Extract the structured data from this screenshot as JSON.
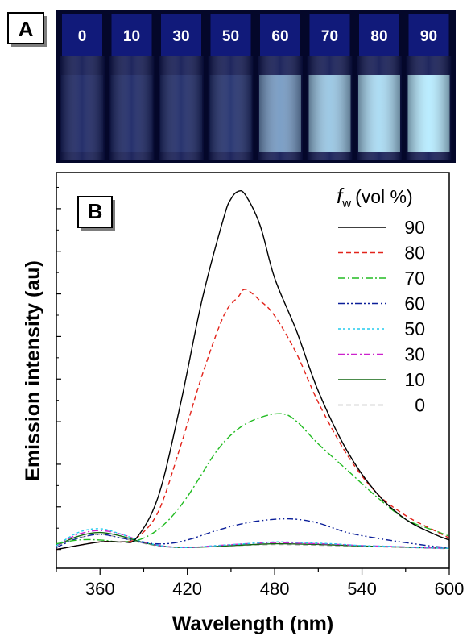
{
  "panel_a": {
    "label": "A",
    "vials": [
      {
        "fw": "0",
        "glow": 0.0
      },
      {
        "fw": "10",
        "glow": 0.03
      },
      {
        "fw": "30",
        "glow": 0.06
      },
      {
        "fw": "50",
        "glow": 0.12
      },
      {
        "fw": "60",
        "glow": 0.72
      },
      {
        "fw": "70",
        "glow": 0.88
      },
      {
        "fw": "80",
        "glow": 0.95
      },
      {
        "fw": "90",
        "glow": 1.0
      }
    ]
  },
  "panel_b": {
    "label": "B"
  },
  "chart_data": {
    "type": "line",
    "title": "",
    "xlabel": "Wavelength (nm)",
    "ylabel": "Emission intensity (au)",
    "xlim": [
      330,
      600
    ],
    "ylim": [
      -5,
      100
    ],
    "x_ticks": [
      360,
      420,
      480,
      540,
      600
    ],
    "legend_title_italic": "f",
    "legend_title_sub": "w",
    "legend_title_rest": "(vol %)",
    "legend_position": "top-right",
    "series": [
      {
        "name": "90",
        "color": "#000000",
        "dash": "",
        "points": [
          [
            330,
            0
          ],
          [
            360,
            2
          ],
          [
            375,
            2
          ],
          [
            385,
            3
          ],
          [
            400,
            14
          ],
          [
            415,
            38
          ],
          [
            430,
            66
          ],
          [
            445,
            88
          ],
          [
            450,
            93
          ],
          [
            455,
            95
          ],
          [
            460,
            94
          ],
          [
            470,
            86
          ],
          [
            480,
            72
          ],
          [
            495,
            58
          ],
          [
            510,
            42
          ],
          [
            530,
            26
          ],
          [
            550,
            15
          ],
          [
            570,
            8
          ],
          [
            590,
            4
          ],
          [
            600,
            2.5
          ]
        ]
      },
      {
        "name": "80",
        "color": "#e2231a",
        "dash": "6,4",
        "points": [
          [
            330,
            0
          ],
          [
            360,
            2
          ],
          [
            375,
            2
          ],
          [
            385,
            3
          ],
          [
            400,
            10
          ],
          [
            415,
            27
          ],
          [
            430,
            46
          ],
          [
            445,
            62
          ],
          [
            455,
            67
          ],
          [
            460,
            69
          ],
          [
            470,
            66
          ],
          [
            480,
            62
          ],
          [
            495,
            52
          ],
          [
            510,
            39
          ],
          [
            530,
            25
          ],
          [
            550,
            15
          ],
          [
            570,
            9
          ],
          [
            590,
            5
          ],
          [
            600,
            3
          ]
        ]
      },
      {
        "name": "70",
        "color": "#22bb22",
        "dash": "9,3,2,3",
        "points": [
          [
            330,
            1.5
          ],
          [
            345,
            2.5
          ],
          [
            360,
            2.5
          ],
          [
            375,
            2
          ],
          [
            390,
            3
          ],
          [
            405,
            7
          ],
          [
            420,
            14
          ],
          [
            440,
            26
          ],
          [
            455,
            32
          ],
          [
            470,
            35
          ],
          [
            485,
            36
          ],
          [
            495,
            34
          ],
          [
            510,
            28
          ],
          [
            530,
            21
          ],
          [
            550,
            14
          ],
          [
            570,
            8
          ],
          [
            590,
            5
          ],
          [
            600,
            3.5
          ]
        ]
      },
      {
        "name": "60",
        "color": "#0b1f99",
        "dash": "8,3,2,3,2,3",
        "points": [
          [
            330,
            0.5
          ],
          [
            345,
            3
          ],
          [
            360,
            4
          ],
          [
            375,
            3
          ],
          [
            390,
            1.8
          ],
          [
            405,
            1.5
          ],
          [
            420,
            2.5
          ],
          [
            440,
            5
          ],
          [
            460,
            7
          ],
          [
            480,
            8
          ],
          [
            495,
            8
          ],
          [
            510,
            7
          ],
          [
            530,
            4.5
          ],
          [
            550,
            3
          ],
          [
            570,
            1.8
          ],
          [
            590,
            0.8
          ],
          [
            600,
            0.5
          ]
        ]
      },
      {
        "name": "50",
        "color": "#22ccee",
        "dash": "3,3",
        "points": [
          [
            330,
            1
          ],
          [
            345,
            4.5
          ],
          [
            360,
            5.5
          ],
          [
            375,
            4
          ],
          [
            390,
            2
          ],
          [
            405,
            0.8
          ],
          [
            420,
            0.5
          ],
          [
            440,
            1
          ],
          [
            460,
            1.5
          ],
          [
            480,
            2
          ],
          [
            500,
            1.8
          ],
          [
            520,
            1.5
          ],
          [
            540,
            1
          ],
          [
            560,
            0.8
          ],
          [
            580,
            0.5
          ],
          [
            600,
            0.3
          ]
        ]
      },
      {
        "name": "30",
        "color": "#cc22cc",
        "dash": "8,3,2,3",
        "points": [
          [
            330,
            1
          ],
          [
            345,
            4
          ],
          [
            360,
            5
          ],
          [
            375,
            4
          ],
          [
            390,
            2
          ],
          [
            405,
            0.8
          ],
          [
            420,
            0.5
          ],
          [
            440,
            1
          ],
          [
            460,
            1.5
          ],
          [
            480,
            1.8
          ],
          [
            500,
            1.6
          ],
          [
            520,
            1.4
          ],
          [
            540,
            1
          ],
          [
            560,
            0.8
          ],
          [
            580,
            0.5
          ],
          [
            600,
            0.3
          ]
        ]
      },
      {
        "name": "10",
        "color": "#116611",
        "dash": "",
        "points": [
          [
            330,
            1
          ],
          [
            345,
            3.5
          ],
          [
            360,
            4.5
          ],
          [
            375,
            3.5
          ],
          [
            390,
            1.8
          ],
          [
            405,
            0.8
          ],
          [
            420,
            0.5
          ],
          [
            440,
            0.8
          ],
          [
            460,
            1.2
          ],
          [
            480,
            1.5
          ],
          [
            500,
            1.4
          ],
          [
            520,
            1.2
          ],
          [
            540,
            0.9
          ],
          [
            560,
            0.7
          ],
          [
            580,
            0.5
          ],
          [
            600,
            0.3
          ]
        ]
      },
      {
        "name": "0",
        "color": "#a9a9a9",
        "dash": "6,4",
        "points": [
          [
            330,
            1
          ],
          [
            345,
            3
          ],
          [
            360,
            4
          ],
          [
            375,
            3
          ],
          [
            390,
            1.6
          ],
          [
            405,
            0.7
          ],
          [
            420,
            0.5
          ],
          [
            440,
            0.8
          ],
          [
            460,
            1.1
          ],
          [
            480,
            1.3
          ],
          [
            500,
            1.2
          ],
          [
            520,
            1
          ],
          [
            540,
            0.8
          ],
          [
            560,
            0.6
          ],
          [
            580,
            0.4
          ],
          [
            600,
            0.2
          ]
        ]
      }
    ]
  }
}
